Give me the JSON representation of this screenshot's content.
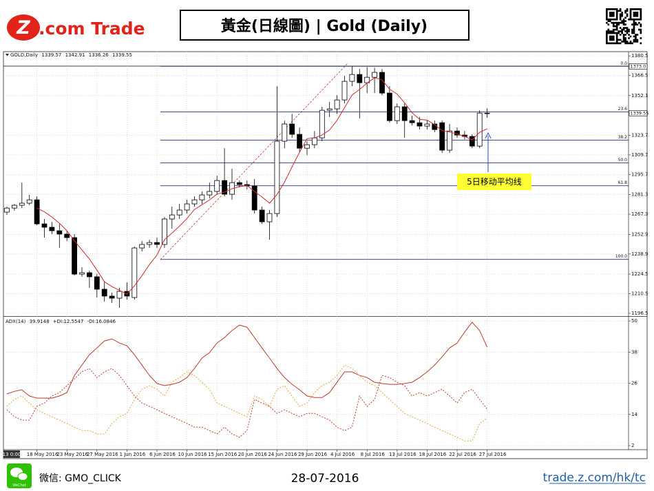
{
  "header": {
    "logo_mark": "Z",
    "logo_text": ".com Trade",
    "title": "黃金(日線圖) | Gold (Daily)"
  },
  "chart_data": [
    {
      "type": "candlestick",
      "symbol_label": "GOLD,Daily",
      "cursor_label": "13 0:00",
      "categories": [
        null,
        null,
        null,
        null,
        "18 May 2016",
        null,
        null,
        null,
        "23 May 2016",
        null,
        null,
        null,
        "27 May 2016",
        null,
        null,
        null,
        "1 Jun 2016",
        null,
        null,
        null,
        "6 Jun 2016",
        null,
        null,
        null,
        "10 Jun 2016",
        null,
        null,
        null,
        "15 Jun 2016",
        null,
        null,
        null,
        "20 Jun 2016",
        null,
        null,
        null,
        "24 Jun 2016",
        null,
        null,
        null,
        "29 Jun 2016",
        null,
        null,
        null,
        "4 Jul 2016",
        null,
        null,
        null,
        "8 Jul 2016",
        null,
        null,
        null,
        "13 Jul 2016",
        null,
        null,
        null,
        "18 Jul 2016",
        null,
        null,
        null,
        "22 Jul 2016",
        null,
        null,
        null,
        "27 Jul 2016"
      ],
      "open": [
        1268.8,
        1271.7,
        1273.7,
        1275.2,
        1277.6,
        1260.4,
        1258.0,
        1255.5,
        1253.1,
        1250.6,
        1224.5,
        1225.5,
        1222.6,
        1213.7,
        1208.8,
        1207.3,
        1212.2,
        1207.8,
        1243.2,
        1245.7,
        1247.1,
        1245.7,
        1263.9,
        1266.8,
        1270.3,
        1274.7,
        1277.6,
        1281.1,
        1283.6,
        1291.4,
        1281.6,
        1289.9,
        1288.5,
        1287.5,
        1270.3,
        1261.9,
        1267.8,
        1319.5,
        1331.8,
        1324.4,
        1314.5,
        1317.0,
        1321.9,
        1341.6,
        1342.6,
        1349.0,
        1362.3,
        1367.2,
        1361.3,
        1365.2,
        1368.7,
        1353.9,
        1334.2,
        1344.1,
        1334.2,
        1332.7,
        1330.3,
        1331.8,
        1332.7,
        1313.1,
        1326.8,
        1323.9,
        1322.9,
        1316.0,
        1339.57
      ],
      "high": [
        1272.7,
        1274.7,
        1289.9,
        1281.1,
        1280.1,
        1263.9,
        1261.9,
        1260.4,
        1255.5,
        1253.1,
        1229.4,
        1227.0,
        1224.5,
        1219.6,
        1211.2,
        1214.7,
        1218.6,
        1244.2,
        1248.1,
        1249.1,
        1250.6,
        1265.3,
        1272.7,
        1274.7,
        1277.6,
        1280.1,
        1283.6,
        1289.9,
        1294.9,
        1314.5,
        1299.8,
        1291.4,
        1291.4,
        1292.4,
        1272.7,
        1270.3,
        1358.8,
        1334.2,
        1339.1,
        1329.3,
        1319.5,
        1326.8,
        1344.1,
        1347.5,
        1352.4,
        1366.2,
        1373.0,
        1371.1,
        1372.5,
        1372.0,
        1371.1,
        1358.8,
        1346.5,
        1346.5,
        1337.7,
        1336.7,
        1334.2,
        1334.2,
        1334.2,
        1331.8,
        1329.3,
        1326.8,
        1324.4,
        1341.6,
        1342.91
      ],
      "low": [
        1266.8,
        1269.8,
        1271.7,
        1273.7,
        1259.4,
        1250.6,
        1253.1,
        1243.2,
        1248.1,
        1223.5,
        1222.6,
        1214.7,
        1207.8,
        1204.8,
        1203.9,
        1200.4,
        1206.3,
        1206.3,
        1240.8,
        1243.2,
        1243.2,
        1243.2,
        1257.0,
        1263.9,
        1267.8,
        1272.7,
        1274.7,
        1278.6,
        1281.1,
        1280.1,
        1277.6,
        1286.5,
        1285.0,
        1267.8,
        1260.4,
        1249.1,
        1265.3,
        1314.5,
        1321.9,
        1312.1,
        1309.6,
        1314.5,
        1319.5,
        1336.7,
        1339.1,
        1346.5,
        1358.8,
        1335.7,
        1353.9,
        1353.9,
        1352.4,
        1332.7,
        1331.8,
        1321.9,
        1330.8,
        1327.8,
        1327.8,
        1325.9,
        1311.1,
        1311.1,
        1321.9,
        1320.9,
        1314.5,
        1314.5,
        1336.26
      ],
      "close": [
        1271.7,
        1273.7,
        1275.2,
        1277.6,
        1260.4,
        1258.0,
        1255.5,
        1253.1,
        1250.6,
        1224.5,
        1225.5,
        1222.6,
        1213.7,
        1208.8,
        1207.3,
        1212.2,
        1208.8,
        1243.2,
        1245.7,
        1247.1,
        1245.7,
        1263.9,
        1266.8,
        1270.3,
        1274.7,
        1277.6,
        1281.1,
        1283.6,
        1291.4,
        1281.6,
        1289.9,
        1288.5,
        1287.5,
        1270.3,
        1261.9,
        1267.8,
        1319.5,
        1331.8,
        1324.4,
        1314.5,
        1317.0,
        1321.9,
        1341.6,
        1342.6,
        1349.0,
        1362.3,
        1367.2,
        1361.3,
        1365.2,
        1368.7,
        1353.9,
        1334.2,
        1344.1,
        1334.2,
        1332.7,
        1330.3,
        1331.8,
        1327.8,
        1313.1,
        1326.8,
        1323.9,
        1322.9,
        1316.0,
        1339.6,
        1339.55
      ],
      "close_label": "1339.55",
      "moving_average": {
        "color": "#d42a2a",
        "label": "5日移动平均线",
        "values": [
          null,
          null,
          null,
          null,
          1271.7,
          1269.0,
          1265.3,
          1260.9,
          1255.5,
          1248.3,
          1241.8,
          1235.3,
          1227.4,
          1219.0,
          1215.6,
          1212.9,
          1210.2,
          1216.1,
          1223.4,
          1231.4,
          1238.1,
          1249.1,
          1253.8,
          1258.8,
          1264.3,
          1270.7,
          1274.1,
          1277.5,
          1281.7,
          1283.1,
          1285.5,
          1287.0,
          1287.8,
          1283.6,
          1279.6,
          1275.2,
          1281.4,
          1290.3,
          1301.1,
          1311.6,
          1321.4,
          1321.9,
          1323.9,
          1327.5,
          1334.4,
          1343.5,
          1352.5,
          1356.5,
          1361.0,
          1364.9,
          1363.3,
          1356.7,
          1353.2,
          1347.0,
          1339.8,
          1335.1,
          1334.6,
          1331.4,
          1327.1,
          1326.0,
          1324.7,
          1322.9,
          1320.5,
          1325.8,
          1328.4
        ]
      },
      "fib_color": "#2e2e8f",
      "fib_levels": [
        {
          "label": "0.0",
          "value": 1373.0,
          "value_label": "1373.0"
        },
        {
          "label": "23.6",
          "value": 1340.4
        },
        {
          "label": "38.2",
          "value": 1320.3
        },
        {
          "label": "50.0",
          "value": 1304.0
        },
        {
          "label": "61.8",
          "value": 1287.7
        },
        {
          "label": "100.0",
          "value": 1235.0
        }
      ],
      "ylim": [
        1195,
        1383.5
      ],
      "yticks": [
        1380.5,
        1366.5,
        1352.1,
        1323.7,
        1309.7,
        1295.7,
        1281.3,
        1267.3,
        1252.9,
        1238.9,
        1224.5,
        1210.5,
        1196.5
      ],
      "grid": true
    },
    {
      "type": "line",
      "ylim": [
        0.7,
        51.6
      ],
      "yticks": [
        50,
        38,
        26,
        14,
        2
      ],
      "series": [
        {
          "name": "ADX(14)",
          "color": "#c0392b",
          "dashed": false,
          "values": [
            21.9,
            22.9,
            23.5,
            21.1,
            20.3,
            20.3,
            20.3,
            21.1,
            22.4,
            29.0,
            33.0,
            37.0,
            39.6,
            42.3,
            43.1,
            41.5,
            40.4,
            37.0,
            33.0,
            29.0,
            25.9,
            25.1,
            25.6,
            26.4,
            28.2,
            31.7,
            35.7,
            37.8,
            41.5,
            43.6,
            46.3,
            48.4,
            47.6,
            43.6,
            39.6,
            35.7,
            31.7,
            28.2,
            25.6,
            23.5,
            21.1,
            20.5,
            20.5,
            22.4,
            26.4,
            30.4,
            30.4,
            29.0,
            28.2,
            26.4,
            25.9,
            25.6,
            25.6,
            25.9,
            26.4,
            28.2,
            30.4,
            33.0,
            36.2,
            39.6,
            41.5,
            45.7,
            49.5,
            46.3,
            39.9148
          ]
        },
        {
          "name": "+DI:",
          "color": "#e8a33c",
          "dashed": true,
          "values": [
            17.1,
            19.8,
            21.1,
            18.4,
            15.8,
            14.4,
            13.1,
            11.8,
            10.5,
            9.1,
            7.8,
            7.8,
            6.5,
            6.5,
            10.5,
            13.1,
            14.4,
            19.8,
            23.7,
            25.1,
            23.7,
            21.1,
            26.4,
            28.2,
            30.4,
            29.0,
            26.4,
            23.7,
            18.4,
            17.1,
            15.8,
            14.4,
            13.1,
            21.1,
            19.8,
            17.1,
            23.7,
            25.1,
            21.1,
            17.1,
            18.4,
            22.4,
            25.1,
            26.4,
            29.0,
            33.0,
            31.7,
            29.0,
            26.4,
            25.1,
            22.4,
            19.8,
            17.1,
            14.4,
            13.1,
            11.8,
            10.5,
            9.1,
            7.8,
            6.5,
            5.2,
            3.8,
            3.8,
            10.5,
            12.5547
          ]
        },
        {
          "name": "-DI:",
          "color": "#c0392b",
          "dashed": true,
          "values": [
            15.8,
            13.1,
            11.8,
            11.8,
            17.1,
            18.4,
            21.1,
            22.4,
            25.1,
            27.7,
            30.4,
            31.7,
            28.2,
            30.4,
            31.7,
            29.0,
            25.1,
            21.1,
            18.4,
            17.1,
            15.8,
            14.4,
            13.1,
            11.8,
            10.5,
            9.1,
            9.1,
            7.8,
            6.5,
            9.1,
            6.5,
            5.2,
            7.8,
            19.8,
            18.4,
            17.1,
            14.4,
            15.8,
            14.4,
            13.1,
            14.4,
            14.4,
            13.1,
            11.8,
            9.1,
            7.8,
            9.1,
            21.1,
            17.1,
            19.8,
            29.0,
            28.2,
            26.4,
            25.1,
            21.1,
            22.4,
            21.1,
            22.4,
            23.7,
            21.1,
            18.4,
            22.4,
            23.7,
            19.8,
            16.0846
          ]
        }
      ],
      "grid": true
    }
  ],
  "footer": {
    "wechat_icon_label": "WeChat",
    "wechat": "微信: GMO_CLICK",
    "date": "28-07-2016",
    "link": "trade.z.com/hk/tc"
  }
}
